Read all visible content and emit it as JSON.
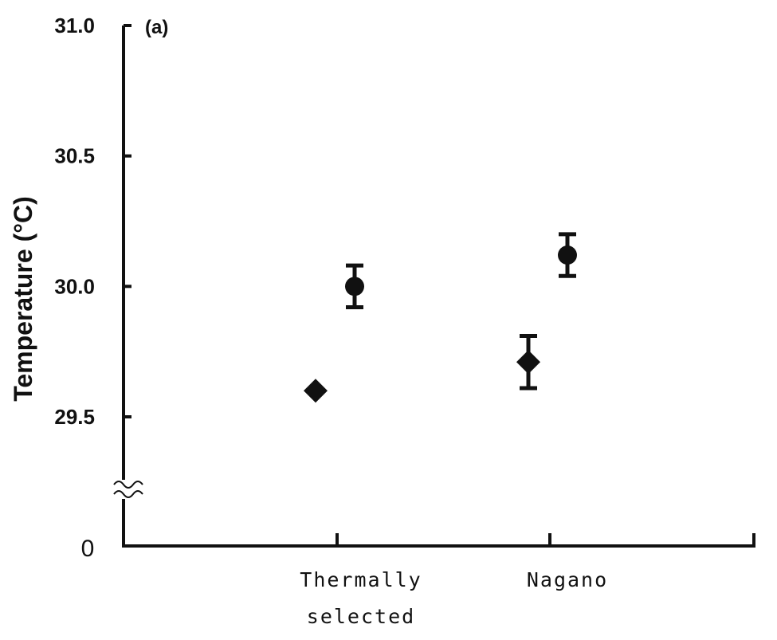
{
  "chart_data": {
    "type": "scatter",
    "panel_label": "(a)",
    "title": "",
    "xlabel": "",
    "ylabel": "Temperature (°C)",
    "categories": [
      {
        "lines": [
          "Thermally",
          "selected"
        ]
      },
      {
        "lines": [
          "Nagano"
        ]
      }
    ],
    "y_axis": {
      "range": [
        29.0,
        31.0
      ],
      "broken": true,
      "origin_label": "0",
      "ticks": [
        {
          "value": 29.5,
          "label": "29.5"
        },
        {
          "value": 30.0,
          "label": "30.0"
        },
        {
          "value": 30.5,
          "label": "30.5"
        },
        {
          "value": 31.0,
          "label": "31.0"
        }
      ]
    },
    "series": [
      {
        "marker": "diamond",
        "points": [
          {
            "category": 0,
            "y": 29.6,
            "err": 0.0
          },
          {
            "category": 1,
            "y": 29.71,
            "err": 0.1
          }
        ]
      },
      {
        "marker": "circle",
        "points": [
          {
            "category": 0,
            "y": 30.0,
            "err": 0.08
          },
          {
            "category": 1,
            "y": 30.12,
            "err": 0.08
          }
        ]
      }
    ],
    "grid": false,
    "legend": "none"
  }
}
